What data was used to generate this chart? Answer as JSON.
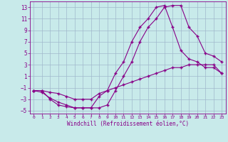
{
  "xlabel": "Windchill (Refroidissement éolien,°C)",
  "xlim": [
    -0.5,
    23.5
  ],
  "ylim": [
    -5.5,
    14.0
  ],
  "yticks": [
    13,
    11,
    9,
    7,
    5,
    3,
    1,
    -1,
    -3,
    -5
  ],
  "xticks": [
    0,
    1,
    2,
    3,
    4,
    5,
    6,
    7,
    8,
    9,
    10,
    11,
    12,
    13,
    14,
    15,
    16,
    17,
    18,
    19,
    20,
    21,
    22,
    23
  ],
  "background_color": "#c8eaea",
  "grid_color": "#a0b8cc",
  "line_color": "#880088",
  "line1_x": [
    0,
    1,
    2,
    3,
    4,
    5,
    6,
    7,
    8,
    9,
    10,
    11,
    12,
    13,
    14,
    15,
    16,
    17,
    18,
    19,
    20,
    21,
    22,
    23
  ],
  "line1_y": [
    -1.5,
    -1.5,
    -1.8,
    -2.0,
    -2.5,
    -3.0,
    -3.0,
    -3.0,
    -2.0,
    -1.5,
    -1.0,
    -0.5,
    0.0,
    0.5,
    1.0,
    1.5,
    2.0,
    2.5,
    2.5,
    3.0,
    3.0,
    3.0,
    3.0,
    1.5
  ],
  "line2_x": [
    0,
    1,
    2,
    3,
    4,
    5,
    6,
    7,
    8,
    9,
    10,
    11,
    12,
    13,
    14,
    15,
    16,
    17,
    18,
    19,
    20,
    21,
    22,
    23
  ],
  "line2_y": [
    -1.5,
    -1.8,
    -2.8,
    -3.5,
    -4.0,
    -4.5,
    -4.5,
    -4.5,
    -4.5,
    -4.0,
    -1.5,
    1.0,
    3.5,
    7.0,
    9.5,
    11.0,
    13.0,
    13.3,
    13.3,
    9.5,
    8.0,
    5.0,
    4.5,
    3.5
  ],
  "line3_x": [
    0,
    1,
    2,
    3,
    4,
    5,
    6,
    7,
    8,
    9,
    10,
    11,
    12,
    13,
    14,
    15,
    16,
    17,
    18,
    19,
    20,
    21,
    22,
    23
  ],
  "line3_y": [
    -1.5,
    -1.5,
    -3.0,
    -4.0,
    -4.3,
    -4.5,
    -4.5,
    -4.5,
    -2.5,
    -1.5,
    1.5,
    3.5,
    7.0,
    9.5,
    11.0,
    13.0,
    13.3,
    9.5,
    5.5,
    4.0,
    3.5,
    2.5,
    2.5,
    1.5
  ]
}
